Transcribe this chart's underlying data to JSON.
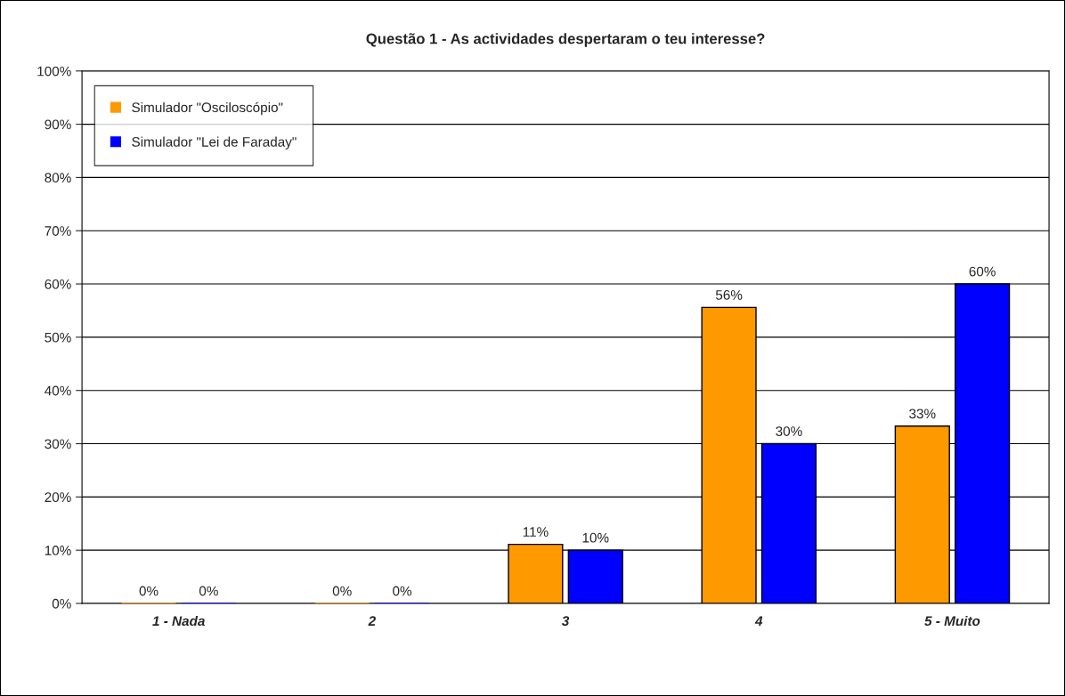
{
  "chart_data": {
    "type": "bar",
    "title": "Questão 1 - As actividades despertaram o teu interesse?",
    "categories": [
      "1 - Nada",
      "2",
      "3",
      "4",
      "5 - Muito"
    ],
    "series": [
      {
        "name": "Simulador \"Osciloscópio\"",
        "color": "#ff9900",
        "values": [
          0,
          0,
          11.1,
          55.6,
          33.3
        ],
        "value_labels": [
          "0%",
          "0%",
          "11%",
          "56%",
          "33%"
        ]
      },
      {
        "name": "Simulador \"Lei de Faraday\"",
        "color": "#0000ff",
        "values": [
          0,
          0,
          10,
          30,
          60
        ],
        "value_labels": [
          "0%",
          "0%",
          "10%",
          "30%",
          "60%"
        ]
      }
    ],
    "ylim": [
      0,
      100
    ],
    "yticks": [
      {
        "value": 0,
        "label": "0%"
      },
      {
        "value": 10,
        "label": "10%"
      },
      {
        "value": 20,
        "label": "20%"
      },
      {
        "value": 30,
        "label": "30%"
      },
      {
        "value": 40,
        "label": "40%"
      },
      {
        "value": 50,
        "label": "50%"
      },
      {
        "value": 60,
        "label": "60%"
      },
      {
        "value": 70,
        "label": "70%"
      },
      {
        "value": 80,
        "label": "80%"
      },
      {
        "value": 90,
        "label": "90%"
      },
      {
        "value": 100,
        "label": "100%"
      }
    ],
    "grid": "y",
    "legend": "top left"
  }
}
